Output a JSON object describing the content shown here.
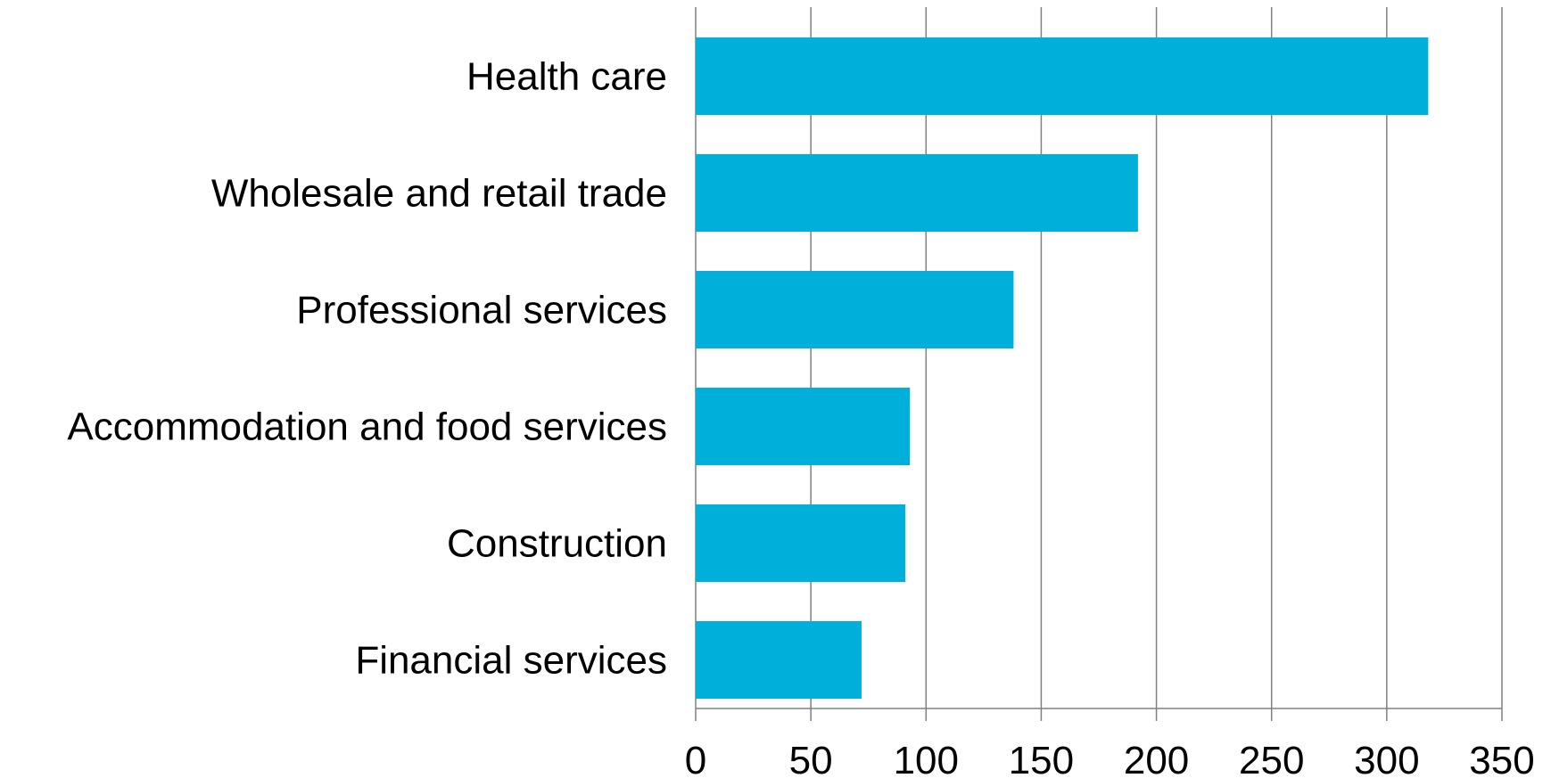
{
  "chart_data": {
    "type": "bar",
    "orientation": "horizontal",
    "title": "",
    "xlabel": "",
    "ylabel": "",
    "categories": [
      "Health care",
      "Wholesale and retail trade",
      "Professional services",
      "Accommodation and food services",
      "Construction",
      "Financial services"
    ],
    "values": [
      318,
      192,
      138,
      93,
      91,
      72
    ],
    "xlim": [
      0,
      350
    ],
    "xticks": [
      0,
      50,
      100,
      150,
      200,
      250,
      300,
      350
    ],
    "xtick_labels": [
      "0",
      "50",
      "100",
      "150",
      "200",
      "250",
      "300",
      "350"
    ],
    "grid": "vertical",
    "legend": "none",
    "bar_color": "#00B0DA",
    "grid_color": "#808080"
  }
}
